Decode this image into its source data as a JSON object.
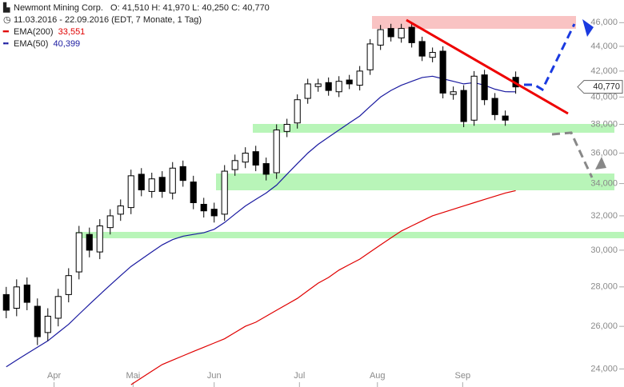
{
  "chart_data": {
    "type": "candlestick",
    "title": "Newmont Mining Corp.",
    "ohlc_text": "O: 41,510  H: 41,970  L: 40,250  C: 40,770",
    "subtitle": "11.03.2016 - 22.09.2016 (EDT, 7 Monate, 1 Tag)",
    "log_scale": true,
    "ylim": [
      23200,
      48000
    ],
    "yticks": [
      {
        "value": 24000,
        "label": "24,000"
      },
      {
        "value": 26000,
        "label": "26,000"
      },
      {
        "value": 28000,
        "label": "28,000"
      },
      {
        "value": 30000,
        "label": "30,000"
      },
      {
        "value": 32000,
        "label": "32,000"
      },
      {
        "value": 34000,
        "label": "34,000"
      },
      {
        "value": 36000,
        "label": "36,000"
      },
      {
        "value": 38000,
        "label": "38,000"
      },
      {
        "value": 40000,
        "label": "40,000"
      },
      {
        "value": 42000,
        "label": "42,000"
      },
      {
        "value": 44000,
        "label": "44,000"
      },
      {
        "value": 46000,
        "label": "46,000"
      }
    ],
    "xlim": [
      -0.6,
      54.8
    ],
    "xticks": [
      {
        "value": 4.6,
        "label": "Apr"
      },
      {
        "value": 12.2,
        "label": "Mai"
      },
      {
        "value": 20,
        "label": "Jun"
      },
      {
        "value": 28.2,
        "label": "Jul"
      },
      {
        "value": 35.7,
        "label": "Aug"
      },
      {
        "value": 43.9,
        "label": "Sep"
      }
    ],
    "up_color": "#ffffff",
    "down_color": "#000000",
    "open": [
      27600,
      26900,
      28100,
      27000,
      25700,
      26400,
      27600,
      28800,
      30900,
      29900,
      31300,
      32100,
      32500,
      34600,
      33500,
      34400,
      33400,
      35100,
      34100,
      32700,
      32400,
      32100,
      34900,
      35400,
      36100,
      35300,
      34700,
      37500,
      38100,
      39900,
      40800,
      41100,
      40400,
      41300,
      40900,
      42100,
      44100,
      45500,
      44700,
      45600,
      44400,
      43100,
      43600,
      40200,
      40500,
      38300,
      41700,
      39900,
      38600,
      41510
    ],
    "high": [
      28000,
      28400,
      28500,
      27400,
      26900,
      27900,
      29000,
      31400,
      31300,
      31800,
      32400,
      33000,
      34900,
      35000,
      34700,
      34800,
      35400,
      35500,
      34500,
      33100,
      32800,
      35200,
      35900,
      36400,
      36500,
      35700,
      38000,
      38400,
      40200,
      41400,
      41400,
      41500,
      41600,
      41700,
      42400,
      44600,
      45800,
      45900,
      45900,
      46000,
      44800,
      43900,
      44000,
      40800,
      40900,
      42000,
      42100,
      40300,
      39000,
      41970
    ],
    "low": [
      26400,
      26500,
      26800,
      25100,
      25300,
      26000,
      27200,
      28400,
      29600,
      29500,
      30900,
      31700,
      32100,
      33200,
      33100,
      33100,
      33000,
      33800,
      32400,
      31900,
      31600,
      31700,
      34500,
      35000,
      34800,
      34200,
      34300,
      37100,
      37700,
      39500,
      40400,
      40100,
      40000,
      40600,
      40500,
      41700,
      43700,
      44400,
      44300,
      43900,
      42800,
      42700,
      39900,
      39800,
      37800,
      37900,
      39400,
      38300,
      37900,
      40250
    ],
    "close": [
      26800,
      28000,
      27200,
      25500,
      26500,
      27500,
      28600,
      31000,
      30000,
      31400,
      32000,
      32600,
      34500,
      33600,
      34300,
      33500,
      35000,
      34200,
      32800,
      32300,
      32000,
      34800,
      35500,
      36000,
      35200,
      34600,
      37600,
      38000,
      39800,
      41000,
      41000,
      40500,
      41200,
      41000,
      42000,
      44200,
      45400,
      44800,
      45500,
      44300,
      43200,
      43500,
      40300,
      40400,
      38200,
      41600,
      39800,
      38700,
      38300,
      40770
    ],
    "last_price_label": "40,770",
    "series": [
      {
        "name": "EMA(200)",
        "color": "#e00000",
        "value_label": "33,551",
        "values": [
          null,
          null,
          null,
          null,
          null,
          null,
          null,
          null,
          null,
          null,
          null,
          null,
          23300,
          23600,
          23900,
          24200,
          24400,
          24600,
          24800,
          25000,
          25200,
          25400,
          25700,
          26000,
          26200,
          26500,
          26800,
          27100,
          27400,
          27800,
          28200,
          28500,
          28900,
          29200,
          29500,
          29900,
          30300,
          30700,
          31100,
          31400,
          31700,
          32000,
          32200,
          32400,
          32600,
          32800,
          33000,
          33200,
          33400,
          33551
        ]
      },
      {
        "name": "EMA(50)",
        "color": "#1a1aa0",
        "value_label": "40,399",
        "values": [
          24100,
          24400,
          24700,
          25000,
          25300,
          25700,
          26100,
          26600,
          27100,
          27600,
          28100,
          28600,
          29100,
          29500,
          29900,
          30300,
          30600,
          30800,
          30900,
          31000,
          31200,
          31600,
          32100,
          32600,
          33000,
          33400,
          33900,
          34600,
          35300,
          36000,
          36600,
          37100,
          37600,
          38100,
          38600,
          39300,
          40000,
          40500,
          40900,
          41200,
          41500,
          41600,
          41400,
          41200,
          41000,
          41100,
          40900,
          40600,
          40400,
          40399
        ]
      }
    ]
  }
}
